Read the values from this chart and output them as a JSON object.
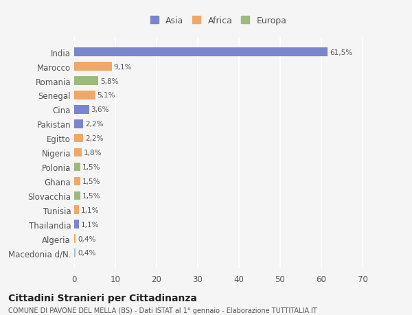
{
  "countries": [
    "Macedonia d/N.",
    "Algeria",
    "Thailandia",
    "Tunisia",
    "Slovacchia",
    "Ghana",
    "Polonia",
    "Nigeria",
    "Egitto",
    "Pakistan",
    "Cina",
    "Senegal",
    "Romania",
    "Marocco",
    "India"
  ],
  "values": [
    0.4,
    0.4,
    1.1,
    1.1,
    1.5,
    1.5,
    1.5,
    1.8,
    2.2,
    2.2,
    3.6,
    5.1,
    5.8,
    9.1,
    61.5
  ],
  "labels": [
    "0,4%",
    "0,4%",
    "1,1%",
    "1,1%",
    "1,5%",
    "1,5%",
    "1,5%",
    "1,8%",
    "2,2%",
    "2,2%",
    "3,6%",
    "5,1%",
    "5,8%",
    "9,1%",
    "61,5%"
  ],
  "colors": [
    "#b0bec5",
    "#f0a86a",
    "#7986cb",
    "#f0a86a",
    "#9cba7c",
    "#f0a86a",
    "#9cba7c",
    "#f0a86a",
    "#f0a86a",
    "#7986cb",
    "#7986cb",
    "#f0a86a",
    "#9cba7c",
    "#f0a86a",
    "#7986cb"
  ],
  "continent_colors": {
    "Asia": "#7986cb",
    "Africa": "#f0a86a",
    "Europa": "#9cba7c"
  },
  "title": "Cittadini Stranieri per Cittadinanza",
  "subtitle": "COMUNE DI PAVONE DEL MELLA (BS) - Dati ISTAT al 1° gennaio - Elaborazione TUTTITALIA.IT",
  "xlim": [
    0,
    70
  ],
  "xticks": [
    0,
    10,
    20,
    30,
    40,
    50,
    60,
    70
  ],
  "bg_color": "#f5f5f5",
  "bar_height": 0.6,
  "grid_color": "#ffffff",
  "text_color": "#555555"
}
